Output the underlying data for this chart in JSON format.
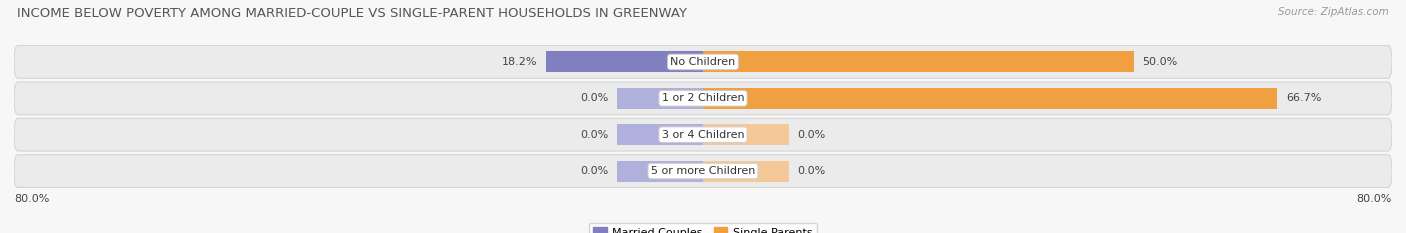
{
  "title": "INCOME BELOW POVERTY AMONG MARRIED-COUPLE VS SINGLE-PARENT HOUSEHOLDS IN GREENWAY",
  "source": "Source: ZipAtlas.com",
  "categories": [
    "No Children",
    "1 or 2 Children",
    "3 or 4 Children",
    "5 or more Children"
  ],
  "married_values": [
    18.2,
    0.0,
    0.0,
    0.0
  ],
  "single_values": [
    50.0,
    66.7,
    0.0,
    0.0
  ],
  "married_color": "#8080c0",
  "married_color_zero": "#b0b0dd",
  "single_color": "#f0a040",
  "single_color_zero": "#f5c898",
  "row_bg_color": "#ebebeb",
  "row_border_color": "#d5d5d5",
  "axis_min": -80.0,
  "axis_max": 80.0,
  "left_label": "80.0%",
  "right_label": "80.0%",
  "legend_married": "Married Couples",
  "legend_single": "Single Parents",
  "title_fontsize": 9.5,
  "source_fontsize": 7.5,
  "label_fontsize": 8,
  "bar_height": 0.58,
  "background_color": "#f7f7f7",
  "zero_bar_width": 10.0
}
